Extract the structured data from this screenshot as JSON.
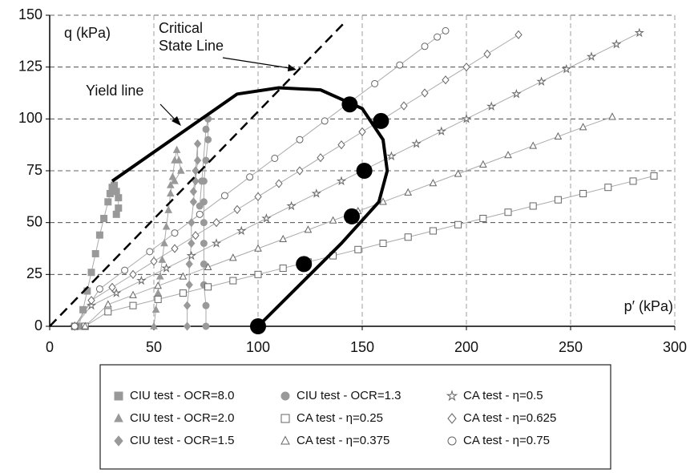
{
  "chart_data": {
    "type": "scatter",
    "xlabel": "p′ (kPa)",
    "ylabel": "q (kPa)",
    "xlim": [
      0,
      300
    ],
    "ylim": [
      0,
      150
    ],
    "xticks": [
      0,
      50,
      100,
      150,
      200,
      250,
      300
    ],
    "yticks": [
      0,
      25,
      50,
      75,
      100,
      125,
      150
    ],
    "grid": true,
    "series": [
      {
        "name": "CIU test - OCR=8.0",
        "marker": "square",
        "filled": true,
        "color": "#999999",
        "x": [
          14,
          16,
          18,
          20,
          22,
          24,
          26,
          28,
          29,
          30,
          31,
          32,
          33,
          33,
          32
        ],
        "values": [
          0,
          8,
          17,
          26,
          35,
          44,
          52,
          60,
          64,
          67,
          68,
          65,
          62,
          57,
          54
        ]
      },
      {
        "name": "CIU test - OCR=2.0",
        "marker": "triangle",
        "filled": true,
        "color": "#999999",
        "x": [
          50,
          51,
          52,
          53,
          54,
          55,
          56,
          57,
          58,
          59,
          60,
          61,
          62,
          63,
          60,
          58
        ],
        "values": [
          0,
          8,
          16,
          24,
          32,
          40,
          48,
          56,
          64,
          72,
          80,
          85,
          80,
          75,
          70,
          68
        ]
      },
      {
        "name": "CIU test - OCR=1.5",
        "marker": "diamond",
        "filled": true,
        "color": "#999999",
        "x": [
          66,
          66,
          67,
          67,
          68,
          68,
          69,
          70,
          71,
          71,
          70,
          69
        ],
        "values": [
          0,
          10,
          20,
          30,
          40,
          50,
          60,
          70,
          80,
          88,
          75,
          65
        ]
      },
      {
        "name": "CIU test - OCR=1.3",
        "marker": "circle",
        "filled": true,
        "color": "#999999",
        "x": [
          75,
          75,
          74,
          74,
          74,
          74,
          74,
          74,
          75,
          76,
          76,
          75,
          73,
          72
        ],
        "values": [
          0,
          10,
          20,
          30,
          40,
          50,
          60,
          70,
          80,
          90,
          100,
          95,
          70,
          58
        ]
      },
      {
        "name": "CA test - η=0.25",
        "marker": "square",
        "filled": false,
        "color": "#666666",
        "x": [
          12,
          17,
          28,
          40,
          52,
          64,
          76,
          88,
          100,
          112,
          124,
          136,
          148,
          160,
          172,
          184,
          196,
          208,
          220,
          232,
          244,
          256,
          268,
          280,
          290
        ],
        "values": [
          0,
          0,
          7,
          10,
          13,
          16,
          19,
          22,
          25,
          28,
          31,
          34,
          37,
          40,
          43,
          46,
          49,
          52,
          55,
          58,
          61,
          64,
          67,
          70,
          72.5
        ]
      },
      {
        "name": "CA test - η=0.375",
        "marker": "triangle",
        "filled": false,
        "color": "#666666",
        "x": [
          12,
          17,
          28,
          40,
          52,
          64,
          76,
          88,
          100,
          112,
          124,
          136,
          148,
          160,
          172,
          184,
          196,
          208,
          220,
          232,
          244,
          256,
          270
        ],
        "values": [
          0,
          0,
          10.5,
          15,
          19.5,
          24,
          28.5,
          33,
          37.5,
          42,
          46.5,
          51,
          55.5,
          60,
          64.5,
          69,
          73.5,
          78,
          82.5,
          87,
          91.5,
          96,
          101
        ]
      },
      {
        "name": "CA test - η=0.5",
        "marker": "star",
        "filled": false,
        "color": "#666666",
        "x": [
          12,
          20,
          32,
          44,
          56,
          68,
          80,
          92,
          104,
          116,
          128,
          140,
          152,
          164,
          176,
          188,
          200,
          212,
          224,
          236,
          248,
          260,
          272,
          283
        ],
        "values": [
          0,
          10,
          16,
          22,
          28,
          34,
          40,
          46,
          52,
          58,
          64,
          70,
          76,
          82,
          88,
          94,
          100,
          106,
          112,
          118,
          124,
          130,
          136,
          141.5
        ]
      },
      {
        "name": "CA test - η=0.625",
        "marker": "diamond",
        "filled": false,
        "color": "#666666",
        "x": [
          12,
          20,
          30,
          40,
          50,
          60,
          70,
          80,
          90,
          100,
          110,
          120,
          130,
          140,
          150,
          160,
          170,
          180,
          190,
          200,
          210,
          225
        ],
        "values": [
          0,
          12.5,
          18.8,
          25,
          31.3,
          37.5,
          43.8,
          50,
          56.3,
          62.5,
          68.8,
          75,
          81.3,
          87.5,
          93.8,
          100,
          106.3,
          112.5,
          118.8,
          125,
          131.3,
          140.6
        ]
      },
      {
        "name": "CA test - η=0.75",
        "marker": "circle",
        "filled": false,
        "color": "#666666",
        "x": [
          12,
          24,
          36,
          48,
          60,
          72,
          84,
          96,
          108,
          120,
          132,
          144,
          156,
          168,
          180,
          186,
          190
        ],
        "values": [
          0,
          18,
          27,
          36,
          45,
          54,
          63,
          72,
          81,
          90,
          99,
          108,
          117,
          126,
          135,
          139.5,
          142.5
        ]
      }
    ],
    "lines": [
      {
        "name": "Yield line",
        "dashed": false,
        "x": [
          30,
          90,
          110,
          130,
          150,
          160,
          162,
          158,
          140,
          100
        ],
        "values": [
          70,
          112,
          115,
          114,
          105,
          90,
          75,
          60,
          40,
          0
        ]
      },
      {
        "name": "Critical State Line",
        "dashed": true,
        "x": [
          0,
          142
        ],
        "values": [
          0,
          147
        ]
      }
    ],
    "yield_points": {
      "x": [
        144,
        159,
        151,
        145,
        122,
        100
      ],
      "values": [
        107,
        99,
        75,
        53,
        30,
        0
      ]
    }
  }
}
